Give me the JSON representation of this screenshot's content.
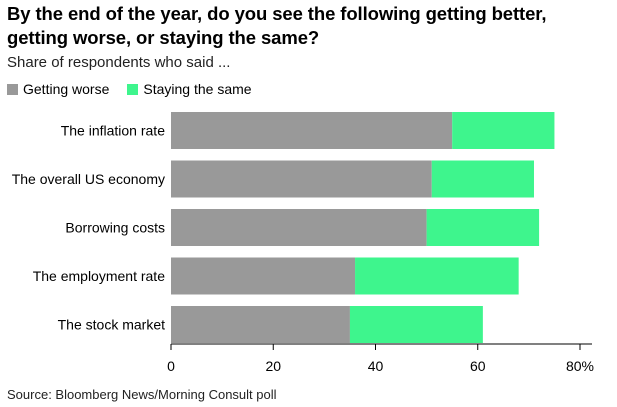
{
  "title": "By the end of the year, do you see the following getting better, getting worse, or staying the same?",
  "subtitle": "Share of respondents who said ...",
  "source": "Source: Bloomberg News/Morning Consult poll",
  "colors": {
    "getting_worse": "#999999",
    "staying_same": "#3ef58d",
    "axis": "#000000",
    "grid": "#cccccc"
  },
  "chart_data": {
    "type": "bar",
    "orientation": "horizontal",
    "stacked": true,
    "categories": [
      "The inflation rate",
      "The overall US economy",
      "Borrowing costs",
      "The employment rate",
      "The stock market"
    ],
    "series": [
      {
        "name": "Getting worse",
        "values": [
          55,
          51,
          50,
          36,
          35
        ]
      },
      {
        "name": "Staying the same",
        "values": [
          20,
          20,
          22,
          32,
          26
        ]
      }
    ],
    "xlim": [
      0,
      80
    ],
    "xticks": [
      "0",
      "20",
      "40",
      "60",
      "80%"
    ],
    "xtick_values": [
      0,
      20,
      40,
      60,
      80
    ],
    "legend": "top-left",
    "grid": false
  }
}
